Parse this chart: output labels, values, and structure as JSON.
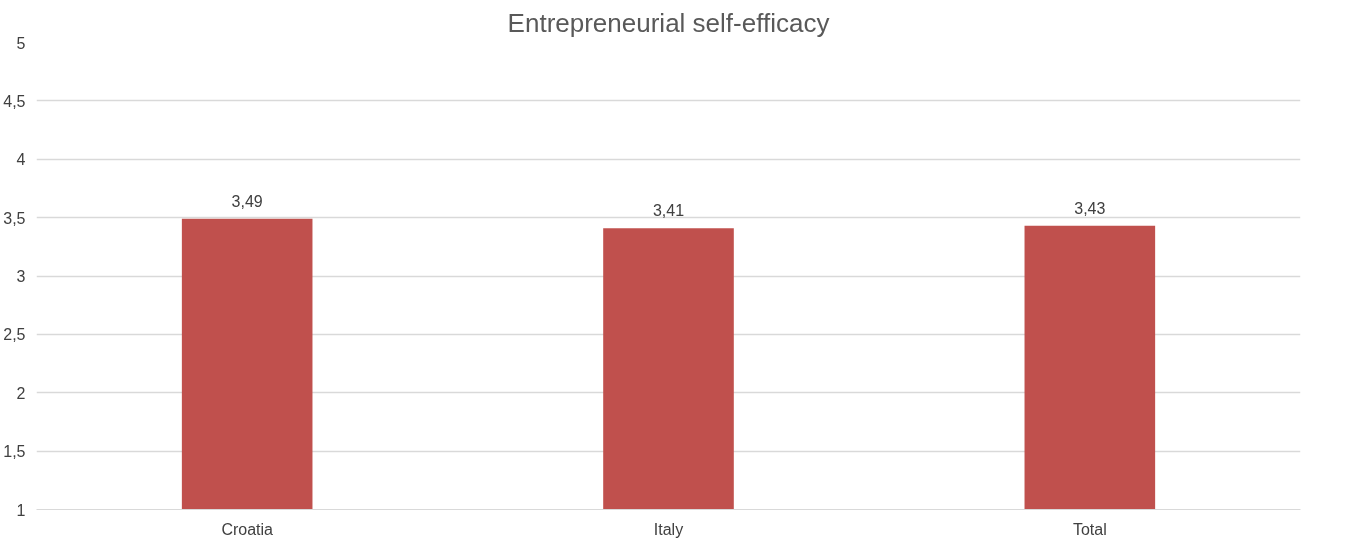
{
  "chart_data": {
    "type": "bar",
    "title": "Entrepreneurial self-efficacy",
    "categories": [
      "Croatia",
      "Italy",
      "Total"
    ],
    "values": [
      3.49,
      3.41,
      3.43
    ],
    "value_labels": [
      "3,49",
      "3,41",
      "3,43"
    ],
    "color": "#c0504d",
    "ylim": [
      1,
      5
    ],
    "yticks": [
      1,
      {
        "value": 1.5,
        "label": "1,5"
      },
      2,
      {
        "value": 2.5,
        "label": "2,5"
      },
      3,
      {
        "value": 3.5,
        "label": "3,5"
      },
      4,
      {
        "value": 4.5,
        "label": "4,5"
      },
      5
    ],
    "grid": "y"
  }
}
